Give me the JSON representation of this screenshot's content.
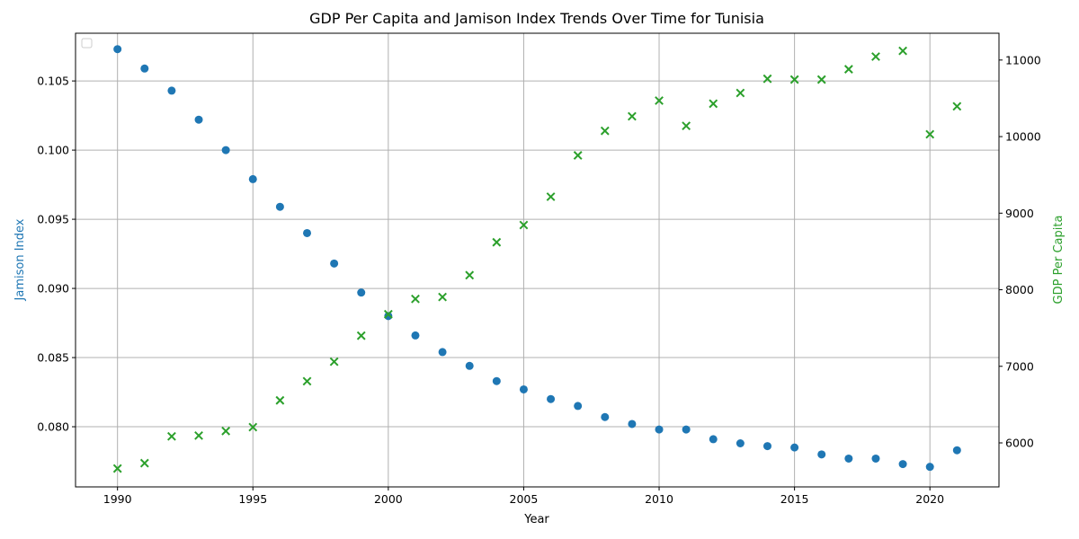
{
  "chart_data": {
    "type": "scatter",
    "title": "GDP Per Capita and Jamison Index Trends Over Time for Tunisia",
    "xlabel": "Year",
    "ylabel_left": "Jamison Index",
    "ylabel_right": "GDP Per Capita",
    "xlim": [
      1988.45,
      2022.55
    ],
    "ylim_left": [
      0.07565,
      0.10845
    ],
    "ylim_right": [
      5425,
      11350
    ],
    "x_ticks": [
      1990,
      1995,
      2000,
      2005,
      2010,
      2015,
      2020
    ],
    "y_left_ticks": [
      "0.080",
      "0.085",
      "0.090",
      "0.095",
      "0.100",
      "0.105"
    ],
    "y_right_ticks": [
      6000,
      7000,
      8000,
      9000,
      10000,
      11000
    ],
    "grid": true,
    "legend": "top-left (empty)",
    "colors": {
      "jamison": "#1f77b4",
      "gdp": "#2ca02c"
    },
    "x": [
      1990,
      1991,
      1992,
      1993,
      1994,
      1995,
      1996,
      1997,
      1998,
      1999,
      2000,
      2001,
      2002,
      2003,
      2004,
      2005,
      2006,
      2007,
      2008,
      2009,
      2010,
      2011,
      2012,
      2013,
      2014,
      2015,
      2016,
      2017,
      2018,
      2019,
      2020,
      2021
    ],
    "series": [
      {
        "name": "Jamison Index",
        "axis": "left",
        "marker": "circle",
        "values": [
          0.1073,
          0.1059,
          0.1043,
          0.1022,
          0.1,
          0.0979,
          0.0959,
          0.094,
          0.0918,
          0.0897,
          0.088,
          0.0866,
          0.0854,
          0.0844,
          0.0833,
          0.0827,
          0.082,
          0.0815,
          0.0807,
          0.0802,
          0.0798,
          0.0798,
          0.0791,
          0.0788,
          0.0786,
          0.0785,
          0.078,
          0.0777,
          0.0777,
          0.0773,
          0.0771,
          0.0783
        ]
      },
      {
        "name": "GDP Per Capita",
        "axis": "right",
        "marker": "x",
        "values": [
          5665,
          5735,
          6085,
          6095,
          6155,
          6205,
          6555,
          6805,
          7060,
          7400,
          7680,
          7880,
          7905,
          8190,
          8620,
          8845,
          9215,
          9755,
          10075,
          10265,
          10470,
          10140,
          10430,
          10570,
          10755,
          10745,
          10745,
          10880,
          11045,
          11120,
          10030,
          10395
        ]
      }
    ]
  }
}
